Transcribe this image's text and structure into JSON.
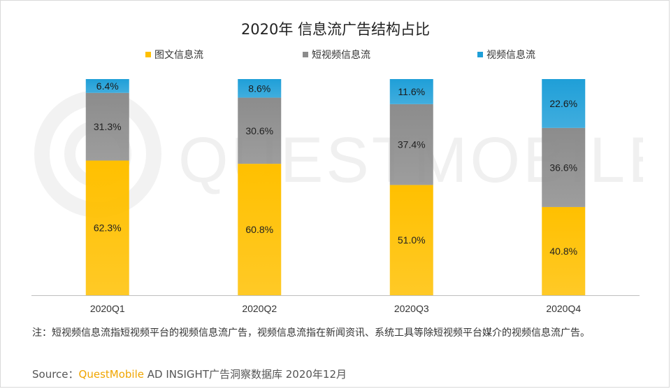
{
  "chart_data": {
    "type": "bar",
    "stacked": true,
    "title": "2020年 信息流广告结构占比",
    "categories": [
      "2020Q1",
      "2020Q2",
      "2020Q3",
      "2020Q4"
    ],
    "series": [
      {
        "name": "图文信息流",
        "color": "#ffc000",
        "values": [
          62.3,
          60.8,
          51.0,
          40.8
        ],
        "labels": [
          "62.3%",
          "60.8%",
          "51.0%",
          "40.8%"
        ]
      },
      {
        "name": "短视频信息流",
        "color": "#8c8c8c",
        "values": [
          31.3,
          30.6,
          37.4,
          36.6
        ],
        "labels": [
          "31.3%",
          "30.6%",
          "37.4%",
          "36.6%"
        ]
      },
      {
        "name": "视频信息流",
        "color": "#1f9fd8",
        "values": [
          6.4,
          8.6,
          11.6,
          22.6
        ],
        "labels": [
          "6.4%",
          "8.6%",
          "11.6%",
          "22.6%"
        ]
      }
    ],
    "ylim": [
      0,
      100
    ],
    "grid": false,
    "legend_position": "top"
  },
  "note": "注：短视频信息流指短视频平台的视频信息流广告，视频信息流指在新闻资讯、系统工具等除短视频平台媒介的视频信息流广告。",
  "source": {
    "prefix": "Source：",
    "brand": "QuestMobile",
    "text": " AD INSIGHT广告洞察数据库 2020年12月"
  },
  "watermark": "QUESTMOBILE"
}
